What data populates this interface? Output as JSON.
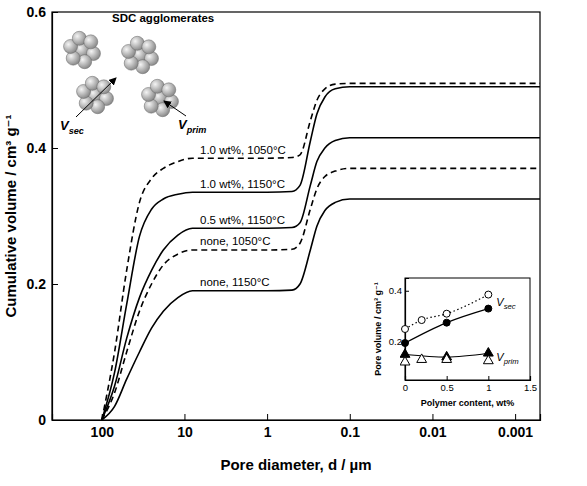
{
  "chart_data": [
    {
      "type": "line",
      "log": "x",
      "x_label": "Pore diameter, d / µm",
      "y_label": "Cumulative volume / cm³ g⁻¹",
      "xlim": [
        400,
        0.0005
      ],
      "xticks": [
        100,
        10,
        1,
        0.1,
        0.01,
        0.001
      ],
      "ylim": [
        0,
        0.6
      ],
      "yticks": [
        0,
        0.2,
        0.4,
        0.6
      ],
      "x": [
        100,
        70,
        50,
        35,
        25,
        18,
        12,
        8,
        5,
        2,
        1,
        0.5,
        0.4,
        0.3,
        0.25,
        0.2,
        0.15,
        0.1,
        0.0005
      ],
      "series": [
        {
          "name": "1.0 wt%, 1050°C",
          "color": "#000000",
          "line_style": "dashed",
          "values": [
            0,
            0.1,
            0.22,
            0.32,
            0.355,
            0.37,
            0.38,
            0.385,
            0.385,
            0.385,
            0.385,
            0.386,
            0.39,
            0.44,
            0.47,
            0.487,
            0.494,
            0.495,
            0.495
          ]
        },
        {
          "name": "1.0 wt%, 1150°C",
          "color": "#000000",
          "line_style": "solid",
          "values": [
            0,
            0.07,
            0.17,
            0.27,
            0.31,
            0.325,
            0.332,
            0.335,
            0.335,
            0.335,
            0.335,
            0.336,
            0.345,
            0.41,
            0.45,
            0.475,
            0.487,
            0.49,
            0.49
          ]
        },
        {
          "name": "0.5 wt%, 1150°C",
          "color": "#000000",
          "line_style": "solid",
          "values": [
            0,
            0.05,
            0.12,
            0.18,
            0.22,
            0.25,
            0.272,
            0.282,
            0.282,
            0.282,
            0.282,
            0.283,
            0.29,
            0.345,
            0.38,
            0.4,
            0.411,
            0.415,
            0.415
          ]
        },
        {
          "name": "none, 1050°C",
          "color": "#000000",
          "line_style": "dashed",
          "values": [
            0,
            0.04,
            0.1,
            0.16,
            0.2,
            0.228,
            0.244,
            0.25,
            0.25,
            0.25,
            0.25,
            0.251,
            0.26,
            0.31,
            0.34,
            0.358,
            0.366,
            0.37,
            0.37
          ]
        },
        {
          "name": "none, 1150°C",
          "color": "#000000",
          "line_style": "solid",
          "values": [
            0,
            0.02,
            0.06,
            0.1,
            0.135,
            0.16,
            0.18,
            0.19,
            0.19,
            0.19,
            0.19,
            0.191,
            0.2,
            0.25,
            0.285,
            0.308,
            0.32,
            0.325,
            0.325
          ]
        }
      ],
      "annotations": [
        {
          "text": "SDC agglomerates"
        },
        {
          "text": "V",
          "subscript": "sec"
        },
        {
          "text": "V",
          "subscript": "prim"
        }
      ]
    },
    {
      "type": "scatter",
      "x_label": "Polymer content, wt%",
      "y_label": "Pore volume / cm³ g⁻¹",
      "xlim": [
        0,
        1.5
      ],
      "xticks": [
        0,
        0.5,
        1,
        1.5
      ],
      "ylim": [
        0.05,
        0.45
      ],
      "yticks": [
        0.2,
        0.4
      ],
      "series": [
        {
          "color": "#000000",
          "marker": "open-circle",
          "line_style": "dotted",
          "x": [
            0,
            0.2,
            0.5,
            1.0
          ],
          "values": [
            0.25,
            0.285,
            0.31,
            0.385
          ]
        },
        {
          "color": "#000000",
          "marker": "filled-circle",
          "line_style": "solid",
          "x": [
            0,
            0.5,
            1.0
          ],
          "values": [
            0.195,
            0.275,
            0.33
          ]
        },
        {
          "color": "#000000",
          "marker": "filled-triangle",
          "line_style": "solid",
          "x": [
            0,
            0.5,
            1.0
          ],
          "values": [
            0.15,
            0.14,
            0.155
          ]
        },
        {
          "color": "#000000",
          "marker": "open-triangle",
          "line_style": "none",
          "x": [
            0,
            0.2,
            0.5,
            1.0
          ],
          "values": [
            0.12,
            0.13,
            0.13,
            0.125
          ]
        }
      ],
      "annotations": [
        {
          "text": "V",
          "subscript": "sec"
        },
        {
          "text": "V",
          "subscript": "prim"
        }
      ]
    }
  ]
}
